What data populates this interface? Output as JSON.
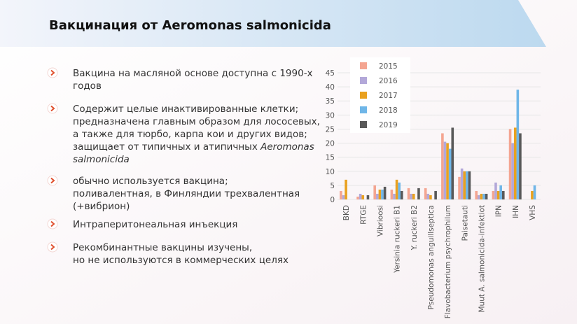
{
  "title": "Вакцинация от Aeromonas salmonicida",
  "bullets": [
    {
      "lines": [
        [
          "Вакцина на масляной основе доступна с 1990-х"
        ],
        [
          "годов"
        ]
      ]
    },
    {
      "lines": [
        [
          "Содержит целые инактивированные клетки;"
        ],
        [
          "предназначена главным образом для лососевых,"
        ],
        [
          "а также для тюрбо, карпа кои и других видов;"
        ],
        [
          "защищает от типичных и атипичных ",
          {
            "em": "Aeromonas"
          }
        ],
        [
          {
            "em": "salmonicida"
          }
        ]
      ]
    },
    {
      "lines": [
        [
          "обычно используется вакцина;"
        ],
        [
          "поливалентная, в Финляндии трехвалентная"
        ],
        [
          "(+вибрион)"
        ]
      ]
    },
    {
      "lines": [
        [
          "Интраперитонеальная инъекция"
        ]
      ]
    },
    {
      "lines": [
        [
          "Рекомбинантные вакцины изучены,"
        ],
        [
          "но не используются в коммерческих целях"
        ]
      ]
    }
  ],
  "chart_data": {
    "type": "bar",
    "categories": [
      "BKD",
      "RTGE",
      "Vibrioosi",
      "Yersinia ruckeri B1",
      "Y. ruckeri B2",
      "Pseudomonas anguillseptica",
      "Flavobacterium psychrophilum",
      "Paisetauti",
      "Muut A. salmonicida-infektiot",
      "IPN",
      "IHN",
      "VHS"
    ],
    "series": [
      {
        "name": "2015",
        "color": "#f4a591",
        "values": [
          3,
          1,
          5,
          3.5,
          4,
          4,
          23.5,
          8,
          3,
          3,
          25,
          null
        ]
      },
      {
        "name": "2016",
        "color": "#b3a8d9",
        "values": [
          1.5,
          2,
          2,
          2,
          2,
          2,
          20.5,
          11,
          1.5,
          6,
          20,
          null
        ]
      },
      {
        "name": "2017",
        "color": "#e9a11f",
        "values": [
          7,
          1.5,
          3.5,
          7,
          2,
          1.5,
          20,
          10,
          2,
          3,
          25.5,
          3
        ]
      },
      {
        "name": "2018",
        "color": "#6fb6e8",
        "values": [
          null,
          null,
          3.5,
          6,
          null,
          null,
          18,
          10,
          2,
          5,
          39,
          5
        ]
      },
      {
        "name": "2019",
        "color": "#595959",
        "values": [
          null,
          1.5,
          4.5,
          3,
          4,
          3,
          25.5,
          10,
          2,
          3,
          23.5,
          null
        ]
      }
    ],
    "ylim": [
      0,
      45
    ],
    "yticks": [
      0,
      5,
      10,
      15,
      20,
      25,
      30,
      35,
      40,
      45
    ],
    "grid": true,
    "legend": "top-left"
  }
}
